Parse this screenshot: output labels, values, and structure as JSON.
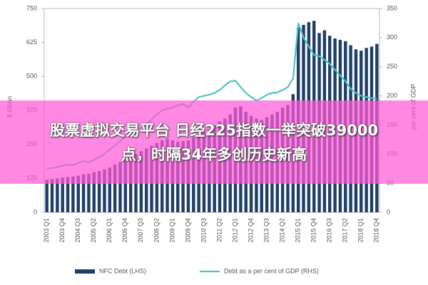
{
  "chart_data": {
    "type": "bar",
    "y_label": "$ billion",
    "y2_label": "per cent of GDP",
    "categories": [
      "2003 Q1",
      null,
      null,
      "2003 Q4",
      null,
      null,
      "2004 Q3",
      null,
      null,
      "2005 Q2",
      null,
      null,
      "2006 Q1",
      null,
      null,
      "2006 Q4",
      null,
      null,
      "2007 Q3",
      null,
      null,
      "2008 Q2",
      null,
      null,
      "2009 Q1",
      null,
      null,
      "2009 Q4",
      null,
      null,
      "2010 Q3",
      null,
      null,
      "2011 Q2",
      null,
      null,
      "2012 Q1",
      null,
      null,
      "2012 Q4",
      null,
      null,
      "2013 Q3",
      null,
      null,
      "2014 Q2",
      null,
      null,
      "2015 Q1",
      null,
      null,
      "2015 Q4",
      null,
      null,
      "2016 Q3",
      null,
      null,
      "2017 Q2",
      null,
      null,
      "2018 Q1",
      null,
      null,
      "2018 Q4"
    ],
    "series": [
      {
        "name": "NFC Debt (LHS)",
        "type": "bar",
        "color": "#1f3f66",
        "values": [
          120,
          122,
          125,
          128,
          130,
          132,
          135,
          140,
          142,
          148,
          152,
          158,
          165,
          175,
          185,
          195,
          205,
          215,
          225,
          235,
          245,
          255,
          265,
          270,
          265,
          260,
          262,
          265,
          275,
          285,
          295,
          305,
          320,
          335,
          345,
          360,
          385,
          390,
          370,
          355,
          345,
          340,
          350,
          360,
          370,
          385,
          395,
          435,
          680,
          690,
          700,
          705,
          660,
          670,
          650,
          640,
          635,
          630,
          615,
          600,
          595,
          605,
          610,
          620
        ]
      },
      {
        "name": "Debt as a per cent of GDP (RHS)",
        "type": "line",
        "axis": "y2",
        "color": "#4ec3c3",
        "values": [
          75,
          76,
          78,
          80,
          82,
          81,
          85,
          88,
          86,
          90,
          95,
          100,
          108,
          115,
          122,
          130,
          135,
          140,
          145,
          150,
          160,
          168,
          175,
          178,
          180,
          184,
          186,
          180,
          190,
          198,
          200,
          202,
          205,
          210,
          218,
          225,
          226,
          215,
          205,
          198,
          192,
          196,
          202,
          205,
          206,
          210,
          215,
          230,
          325,
          300,
          285,
          270,
          268,
          262,
          255,
          245,
          235,
          225,
          212,
          205,
          200,
          198,
          196,
          195
        ]
      }
    ],
    "ylim": [
      0,
      750
    ],
    "yticks": [
      0,
      125,
      250,
      375,
      500,
      625,
      750
    ],
    "y2lim": [
      0,
      350
    ],
    "y2ticks": [
      0,
      50,
      100,
      150,
      200,
      250,
      300,
      350
    ]
  },
  "banner": {
    "lines": [
      "股票虚拟交易平台 日经225指数一举突破39000",
      "点，时隔34年多创历史新高"
    ]
  }
}
